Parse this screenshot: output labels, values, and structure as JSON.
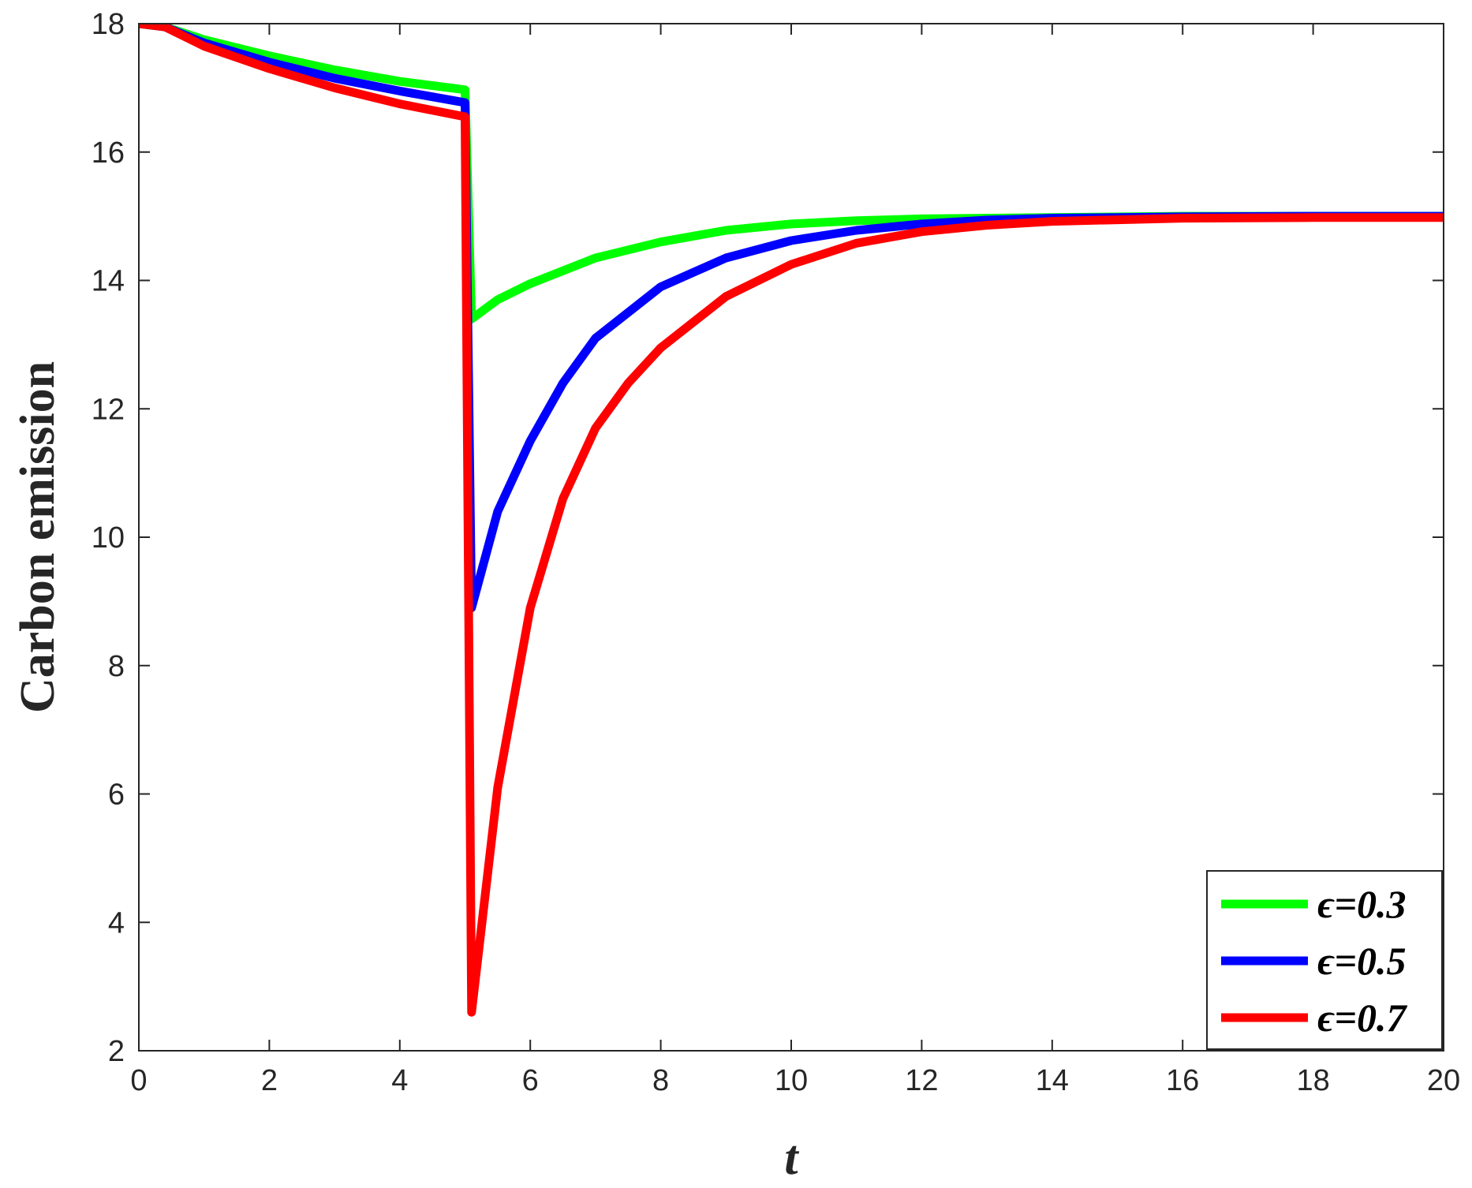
{
  "chart_data": {
    "type": "line",
    "title": "",
    "xlabel": "t",
    "ylabel": "Carbon emission",
    "xlim": [
      0,
      20
    ],
    "ylim": [
      2,
      18
    ],
    "xticks": [
      0,
      2,
      4,
      6,
      8,
      10,
      12,
      14,
      16,
      18,
      20
    ],
    "yticks": [
      2,
      4,
      6,
      8,
      10,
      12,
      14,
      16,
      18
    ],
    "grid": false,
    "legend_position": "bottom-right",
    "series": [
      {
        "name": "ϵ=0.3",
        "color": "#00ff00",
        "x": [
          0,
          0.4,
          1,
          2,
          3,
          4,
          5,
          5.1,
          5.5,
          6,
          7,
          8,
          9,
          10,
          11,
          12,
          14,
          16,
          18,
          20
        ],
        "y": [
          18,
          17.95,
          17.75,
          17.5,
          17.28,
          17.1,
          16.97,
          13.4,
          13.7,
          13.95,
          14.35,
          14.6,
          14.78,
          14.88,
          14.93,
          14.96,
          14.98,
          15,
          15,
          15
        ]
      },
      {
        "name": "ϵ=0.5",
        "color": "#0000ff",
        "x": [
          0,
          0.4,
          1,
          2,
          3,
          4,
          5,
          5.1,
          5.5,
          6,
          6.5,
          7,
          8,
          9,
          10,
          11,
          12,
          13,
          14,
          16,
          18,
          20
        ],
        "y": [
          18,
          17.95,
          17.7,
          17.4,
          17.15,
          16.95,
          16.77,
          8.9,
          10.4,
          11.5,
          12.4,
          13.1,
          13.9,
          14.35,
          14.62,
          14.78,
          14.88,
          14.94,
          14.97,
          14.99,
          15,
          15
        ]
      },
      {
        "name": "ϵ=0.7",
        "color": "#ff0000",
        "x": [
          0,
          0.4,
          1,
          2,
          3,
          4,
          5,
          5.1,
          5.5,
          6,
          6.5,
          7,
          7.5,
          8,
          9,
          10,
          11,
          12,
          13,
          14,
          16,
          18,
          20
        ],
        "y": [
          18,
          17.95,
          17.65,
          17.3,
          17.0,
          16.75,
          16.55,
          2.6,
          6.1,
          8.9,
          10.6,
          11.7,
          12.4,
          12.95,
          13.75,
          14.25,
          14.58,
          14.76,
          14.86,
          14.92,
          14.97,
          14.98,
          14.98
        ]
      }
    ]
  }
}
